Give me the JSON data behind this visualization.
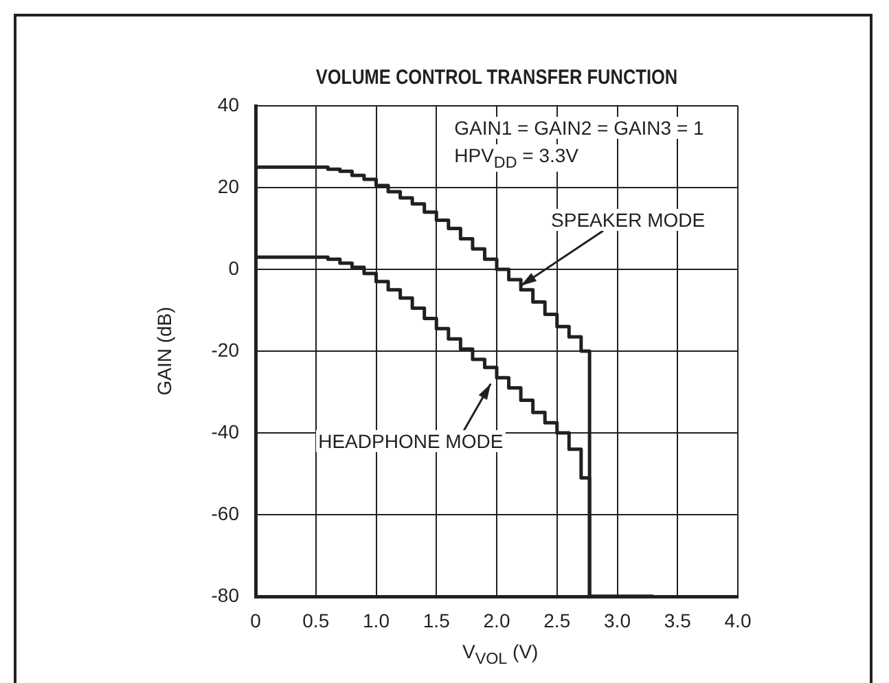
{
  "chart_data": {
    "type": "step",
    "title": "VOLUME CONTROL TRANSFER FUNCTION",
    "xlabel": "V$_{VOL}$ (V)",
    "ylabel": "GAIN (dB)",
    "x": [
      0,
      0.5,
      0.6,
      0.7,
      0.8,
      0.9,
      1.0,
      1.1,
      1.2,
      1.3,
      1.4,
      1.5,
      1.6,
      1.7,
      1.8,
      1.9,
      2.0,
      2.1,
      2.2,
      2.3,
      2.4,
      2.5,
      2.6,
      2.7,
      2.77,
      3.3
    ],
    "series": [
      {
        "color": "#231f20",
        "values": [
          25,
          25,
          24.5,
          24,
          23,
          22,
          20.5,
          19,
          17.5,
          16,
          14,
          12,
          10,
          7.5,
          5,
          2.5,
          0,
          -2.5,
          -5,
          -8,
          -11,
          -14,
          -16.5,
          -20,
          -80,
          -80
        ]
      },
      {
        "color": "#231f20",
        "values": [
          3,
          3,
          2.5,
          1.5,
          0.5,
          -1,
          -3,
          -5,
          -7,
          -9.5,
          -12,
          -14.5,
          -17,
          -19.5,
          -22,
          -24,
          -26.5,
          -29,
          -32,
          -35,
          -37.5,
          -40,
          -44,
          -51,
          -80,
          -80
        ]
      }
    ],
    "xlim": [
      0,
      4
    ],
    "xticks": [
      0,
      {
        "value": 0.5,
        "label": "0.5"
      },
      {
        "value": 1,
        "label": "1.0"
      },
      {
        "value": 1.5,
        "label": "1.5"
      },
      {
        "value": 2,
        "label": "2.0"
      },
      {
        "value": 2.5,
        "label": "2.5"
      },
      {
        "value": 3,
        "label": "3.0"
      },
      {
        "value": 3.5,
        "label": "3.5"
      },
      {
        "value": 4,
        "label": "4.0"
      }
    ],
    "ylim": [
      -80,
      40
    ],
    "yticks": [
      -80,
      -60,
      -40,
      -20,
      0,
      20,
      40
    ],
    "grid": true,
    "legend": false,
    "line_style": "solid",
    "marker": "none",
    "annotations": [
      "GAIN1 = GAIN2 = GAIN3 = 1",
      "HPV$_{DD}$ = 3.3V",
      {
        "text": "SPEAKER MODE",
        "x": 2.2,
        "y": -4
      },
      {
        "text": "HEADPHONE MODE",
        "x": 1.95,
        "y": -28
      }
    ]
  }
}
